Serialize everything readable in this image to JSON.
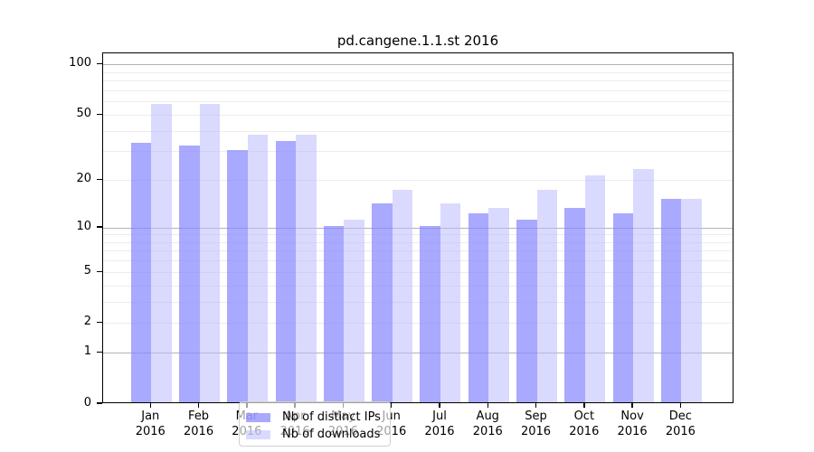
{
  "chart_data": {
    "type": "bar",
    "title": "pd.cangene.1.1.st 2016",
    "xlabel": "",
    "ylabel": "",
    "yscale": "log1p",
    "ylim": [
      0,
      117
    ],
    "yticks": [
      100,
      50,
      20,
      10,
      5,
      2,
      1,
      0
    ],
    "categories": [
      "Jan 2016",
      "Feb 2016",
      "Mar 2016",
      "Apr 2016",
      "May 2016",
      "Jun 2016",
      "Jul 2016",
      "Aug 2016",
      "Sep 2016",
      "Oct 2016",
      "Nov 2016",
      "Dec 2016"
    ],
    "series": [
      {
        "name": "Nb of distinct IPs",
        "color": "rgba(136,136,255,0.72)",
        "values": [
          33,
          32,
          30,
          34,
          10,
          14,
          10,
          12,
          11,
          13,
          12,
          15
        ]
      },
      {
        "name": "Nb of downloads",
        "color": "rgba(187,187,255,0.55)",
        "values": [
          57,
          57,
          37,
          37,
          11,
          17,
          14,
          13,
          17,
          21,
          23,
          15
        ]
      }
    ],
    "grid": {
      "enabled": true,
      "major_values": [
        1,
        10,
        100
      ],
      "major_color": "#b3b3b3",
      "minor_color": "#ececec"
    },
    "legend_position": "bottom-center-inside",
    "axis_color": "#000000",
    "background_color": "#ffffff"
  }
}
